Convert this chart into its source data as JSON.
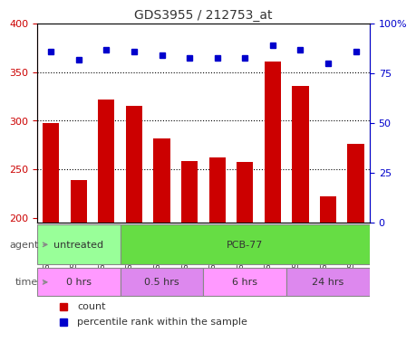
{
  "title": "GDS3955 / 212753_at",
  "samples": [
    "GSM158373",
    "GSM158374",
    "GSM158375",
    "GSM158376",
    "GSM158377",
    "GSM158378",
    "GSM158379",
    "GSM158380",
    "GSM158381",
    "GSM158382",
    "GSM158383",
    "GSM158384"
  ],
  "counts": [
    298,
    239,
    322,
    315,
    282,
    258,
    262,
    257,
    361,
    336,
    222,
    276
  ],
  "percentiles": [
    86,
    82,
    87,
    86,
    84,
    83,
    83,
    83,
    89,
    87,
    80,
    86
  ],
  "ylim_left": [
    195,
    400
  ],
  "ylim_right": [
    0,
    100
  ],
  "yticks_left": [
    200,
    250,
    300,
    350,
    400
  ],
  "yticks_right": [
    0,
    25,
    50,
    75,
    100
  ],
  "bar_color": "#cc0000",
  "dot_color": "#0000cc",
  "grid_color": "#000000",
  "bg_color": "#ffffff",
  "agent_labels": [
    {
      "label": "untreated",
      "start": 0,
      "end": 3,
      "color": "#99ff99"
    },
    {
      "label": "PCB-77",
      "start": 3,
      "end": 12,
      "color": "#66dd44"
    }
  ],
  "time_labels": [
    {
      "label": "0 hrs",
      "start": 0,
      "end": 3,
      "color": "#ff99ff"
    },
    {
      "label": "0.5 hrs",
      "start": 3,
      "end": 6,
      "color": "#dd88ee"
    },
    {
      "label": "6 hrs",
      "start": 6,
      "end": 9,
      "color": "#ff99ff"
    },
    {
      "label": "24 hrs",
      "start": 9,
      "end": 12,
      "color": "#dd88ee"
    }
  ],
  "legend_count_color": "#cc0000",
  "legend_dot_color": "#0000cc",
  "xlabel_color": "#555555",
  "left_axis_color": "#cc0000",
  "right_axis_color": "#0000cc"
}
